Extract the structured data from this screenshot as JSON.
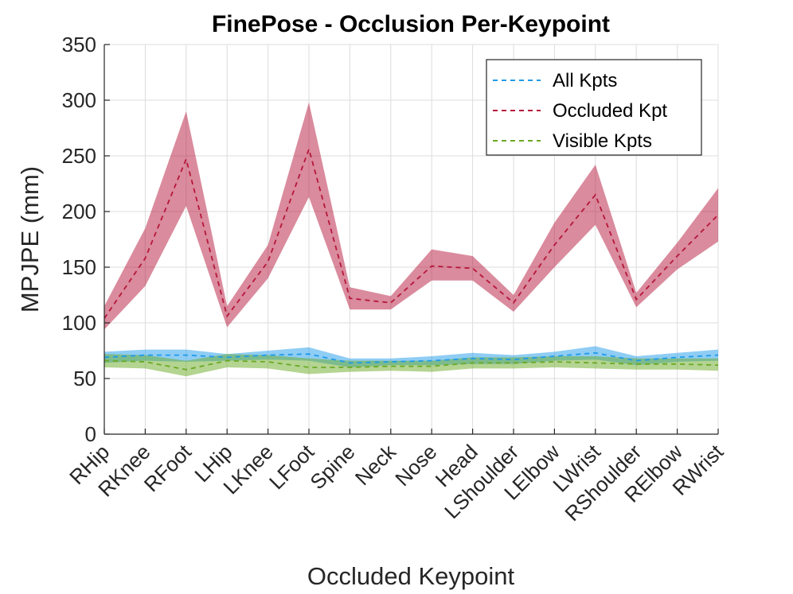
{
  "chart_data": {
    "type": "line",
    "title": "FinePose - Occlusion Per-Keypoint",
    "xlabel": "Occluded Keypoint",
    "ylabel": "MPJPE (mm)",
    "ylim": [
      0,
      350
    ],
    "yticks": [
      0,
      50,
      100,
      150,
      200,
      250,
      300,
      350
    ],
    "grid": true,
    "legend_position": "top-right",
    "categories": [
      "RHip",
      "RKnee",
      "RFoot",
      "LHip",
      "LKnee",
      "LFoot",
      "Spine",
      "Neck",
      "Nose",
      "Head",
      "LShoulder",
      "LElbow",
      "LWrist",
      "RShoulder",
      "RElbow",
      "RWrist"
    ],
    "series": [
      {
        "name": "All Kpts",
        "color": "#1f9bea",
        "values": [
          69,
          71,
          71,
          69,
          71,
          72,
          64,
          65,
          66,
          68,
          67,
          70,
          73,
          66,
          69,
          71
        ],
        "upper": [
          74,
          76,
          76,
          72,
          75,
          78,
          68,
          68,
          70,
          73,
          71,
          74,
          79,
          70,
          73,
          76
        ],
        "lower": [
          64,
          66,
          65,
          66,
          67,
          66,
          60,
          62,
          62,
          63,
          63,
          66,
          67,
          62,
          65,
          66
        ]
      },
      {
        "name": "Occluded Kpt",
        "color": "#b5173b",
        "values": [
          104,
          158,
          247,
          106,
          155,
          256,
          122,
          118,
          151,
          149,
          118,
          170,
          215,
          121,
          160,
          197
        ],
        "upper": [
          115,
          185,
          290,
          115,
          170,
          298,
          132,
          124,
          166,
          160,
          125,
          190,
          242,
          127,
          172,
          221
        ],
        "lower": [
          94,
          133,
          205,
          96,
          140,
          213,
          112,
          112,
          138,
          138,
          110,
          150,
          188,
          114,
          148,
          173
        ]
      },
      {
        "name": "Visible Kpts",
        "color": "#6aa924",
        "values": [
          66,
          65,
          58,
          66,
          65,
          60,
          60,
          61,
          61,
          64,
          64,
          65,
          64,
          63,
          63,
          62
        ],
        "upper": [
          72,
          71,
          66,
          72,
          71,
          68,
          66,
          66,
          66,
          69,
          69,
          70,
          70,
          68,
          68,
          68
        ],
        "lower": [
          60,
          59,
          52,
          60,
          59,
          54,
          56,
          57,
          56,
          59,
          59,
          60,
          59,
          58,
          58,
          57
        ]
      }
    ]
  }
}
